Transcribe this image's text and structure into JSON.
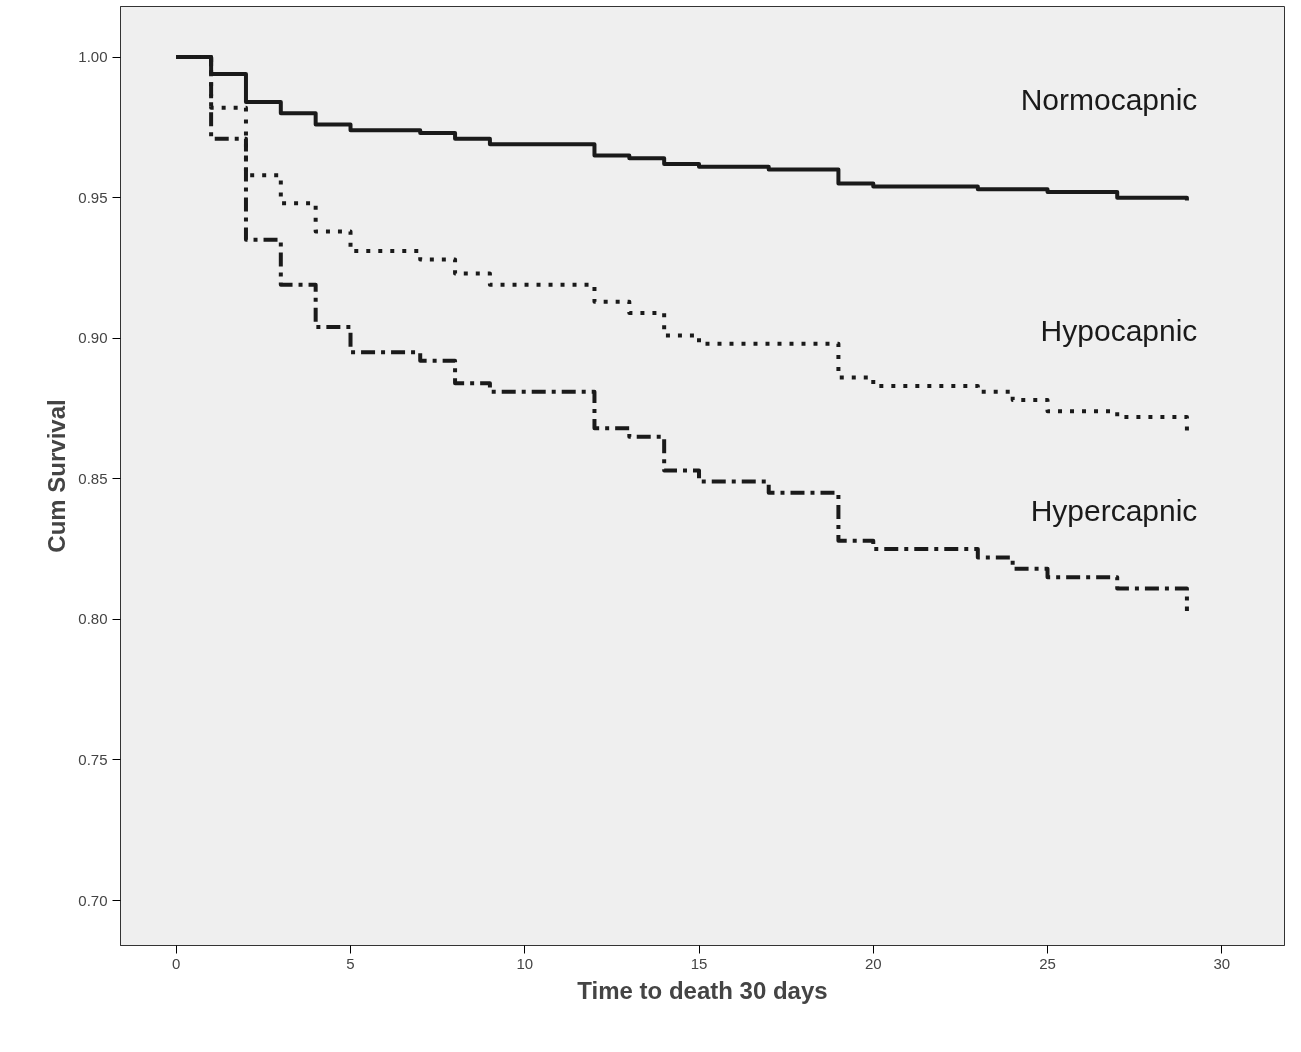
{
  "chart_data": {
    "type": "step",
    "xlabel": "Time to death 30 days",
    "ylabel": "Cum Survival",
    "x": [
      0,
      1,
      2,
      3,
      4,
      5,
      7,
      8,
      9,
      12,
      13,
      14,
      15,
      17,
      19,
      20,
      23,
      24,
      25,
      27,
      29
    ],
    "series": [
      {
        "name": "Normocapnic",
        "color": "#1a1a1a",
        "line_style": "solid",
        "values": [
          1.0,
          0.994,
          0.984,
          0.98,
          0.976,
          0.974,
          0.973,
          0.971,
          0.969,
          0.965,
          0.964,
          0.962,
          0.961,
          0.96,
          0.955,
          0.954,
          0.953,
          0.953,
          0.952,
          0.95,
          0.949
        ]
      },
      {
        "name": "Hypocapnic",
        "color": "#1a1a1a",
        "line_style": "dotted",
        "values": [
          1.0,
          0.982,
          0.958,
          0.948,
          0.938,
          0.931,
          0.928,
          0.923,
          0.919,
          0.913,
          0.909,
          0.901,
          0.898,
          0.898,
          0.886,
          0.883,
          0.881,
          0.878,
          0.874,
          0.872,
          0.867
        ]
      },
      {
        "name": "Hypercapnic",
        "color": "#1a1a1a",
        "line_style": "dashdot",
        "values": [
          1.0,
          0.971,
          0.935,
          0.919,
          0.904,
          0.895,
          0.892,
          0.884,
          0.881,
          0.868,
          0.865,
          0.853,
          0.849,
          0.845,
          0.828,
          0.825,
          0.822,
          0.818,
          0.815,
          0.811,
          0.803
        ]
      }
    ],
    "xlim": [
      -1.6,
      31.8
    ],
    "ylim": [
      0.684,
      1.018
    ],
    "xticks": [
      0,
      5,
      10,
      15,
      20,
      25,
      30
    ],
    "yticks": [
      {
        "value": 0.7,
        "label": "0.70"
      },
      {
        "value": 0.75,
        "label": "0.75"
      },
      {
        "value": 0.8,
        "label": "0.80"
      },
      {
        "value": 0.85,
        "label": "0.85"
      },
      {
        "value": 0.9,
        "label": "0.90"
      },
      {
        "value": 0.95,
        "label": "0.95"
      },
      {
        "value": 1.0,
        "label": "1.00"
      }
    ],
    "grid": false
  }
}
